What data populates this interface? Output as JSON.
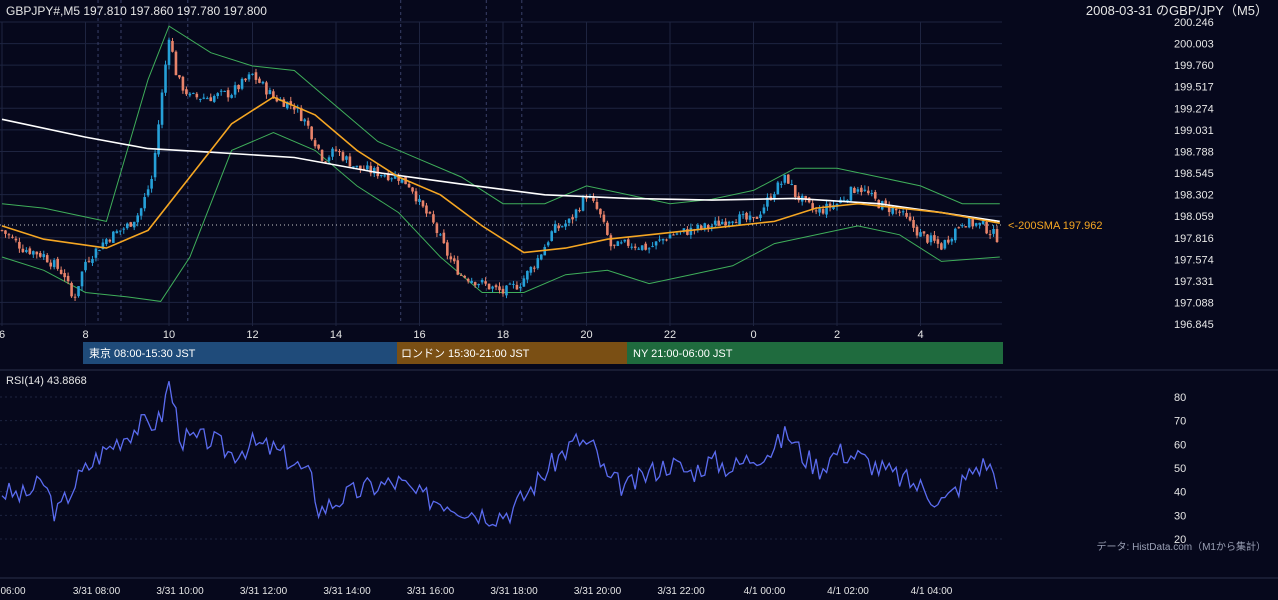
{
  "header": {
    "ohlc_text": "GBPJPY#,M5 197.810 197.860 197.780 197.800",
    "title_text": "2008-03-31 のGBP/JPY（M5）"
  },
  "price_axis": {
    "ticks": [
      "200.246",
      "200.003",
      "199.760",
      "199.517",
      "199.274",
      "199.031",
      "198.788",
      "198.545",
      "198.302",
      "198.059",
      "197.816",
      "197.574",
      "197.331",
      "197.088",
      "196.845"
    ]
  },
  "hour_axis": {
    "ticks": [
      "6",
      "8",
      "10",
      "12",
      "14",
      "16",
      "18",
      "20",
      "22",
      "0",
      "2",
      "4"
    ]
  },
  "sessions": [
    {
      "label": "東京 08:00-15:30 JST",
      "color": "#1f4b7a"
    },
    {
      "label": "ロンドン 15:30-21:00 JST",
      "color": "#7a4f14"
    },
    {
      "label": "NY 21:00-06:00 JST",
      "color": "#1f6b3e"
    }
  ],
  "sma_label": "<-200SMA 197.962",
  "rsi_label": "RSI(14) 43.8868",
  "rsi_axis": {
    "ticks": [
      "80",
      "70",
      "60",
      "50",
      "40",
      "30",
      "20"
    ]
  },
  "source_note": "データ: HistData.com（M1から集計）",
  "time_axis": {
    "ticks": [
      "06:00",
      "3/31 08:00",
      "3/31 10:00",
      "3/31 12:00",
      "3/31 14:00",
      "3/31 16:00",
      "3/31 18:00",
      "3/31 20:00",
      "3/31 22:00",
      "4/1 00:00",
      "4/1 02:00",
      "4/1 04:00"
    ]
  },
  "colors": {
    "background": "#06081c",
    "up": "#26a0d8",
    "down": "#e8836a",
    "sma20": "#f5a623",
    "sma200": "#ffffff",
    "bollinger": "#3fae5a",
    "rsi": "#5b6cf0",
    "grid": "#1e2440"
  },
  "chart_data": {
    "type": "candlestick",
    "symbol": "GBPJPY",
    "timeframe": "M5",
    "ylim": [
      196.845,
      200.246
    ],
    "x_hours": [
      6,
      8,
      10,
      12,
      14,
      16,
      18,
      20,
      22,
      0,
      2,
      4
    ],
    "close_path": [
      [
        6.0,
        197.9
      ],
      [
        6.5,
        197.7
      ],
      [
        7.0,
        197.62
      ],
      [
        7.5,
        197.4
      ],
      [
        7.7,
        197.1
      ],
      [
        8.0,
        197.55
      ],
      [
        8.5,
        197.8
      ],
      [
        9.0,
        197.95
      ],
      [
        9.3,
        198.1
      ],
      [
        9.6,
        198.5
      ],
      [
        9.8,
        199.3
      ],
      [
        10.0,
        200.1
      ],
      [
        10.2,
        199.6
      ],
      [
        10.5,
        199.4
      ],
      [
        11.0,
        199.4
      ],
      [
        11.5,
        199.45
      ],
      [
        12.0,
        199.65
      ],
      [
        12.5,
        199.4
      ],
      [
        13.0,
        199.3
      ],
      [
        13.3,
        199.1
      ],
      [
        13.7,
        198.7
      ],
      [
        14.0,
        198.8
      ],
      [
        14.5,
        198.6
      ],
      [
        15.0,
        198.55
      ],
      [
        15.5,
        198.5
      ],
      [
        15.8,
        198.4
      ],
      [
        16.0,
        198.2
      ],
      [
        16.3,
        198.0
      ],
      [
        16.7,
        197.6
      ],
      [
        17.0,
        197.4
      ],
      [
        17.5,
        197.3
      ],
      [
        18.0,
        197.2
      ],
      [
        18.4,
        197.3
      ],
      [
        18.8,
        197.55
      ],
      [
        19.2,
        197.9
      ],
      [
        19.6,
        198.0
      ],
      [
        20.0,
        198.3
      ],
      [
        20.3,
        198.1
      ],
      [
        20.6,
        197.7
      ],
      [
        21.0,
        197.75
      ],
      [
        21.5,
        197.7
      ],
      [
        22.0,
        197.85
      ],
      [
        22.5,
        197.9
      ],
      [
        23.0,
        197.95
      ],
      [
        23.5,
        198.05
      ],
      [
        24.0,
        198.0
      ],
      [
        24.5,
        198.35
      ],
      [
        24.8,
        198.5
      ],
      [
        25.0,
        198.3
      ],
      [
        25.5,
        198.1
      ],
      [
        26.0,
        198.2
      ],
      [
        26.5,
        198.4
      ],
      [
        27.0,
        198.2
      ],
      [
        27.5,
        198.1
      ],
      [
        28.0,
        197.85
      ],
      [
        28.5,
        197.72
      ],
      [
        29.0,
        198.0
      ],
      [
        29.5,
        197.95
      ],
      [
        29.9,
        197.8
      ]
    ],
    "sma200_path": [
      [
        6.0,
        199.15
      ],
      [
        8.0,
        198.95
      ],
      [
        9.5,
        198.82
      ],
      [
        11.0,
        198.78
      ],
      [
        13.0,
        198.72
      ],
      [
        15.0,
        198.55
      ],
      [
        17.0,
        198.42
      ],
      [
        19.0,
        198.3
      ],
      [
        21.0,
        198.26
      ],
      [
        23.0,
        198.24
      ],
      [
        25.0,
        198.26
      ],
      [
        27.0,
        198.2
      ],
      [
        28.5,
        198.1
      ],
      [
        29.9,
        198.0
      ]
    ],
    "sma20_path": [
      [
        6.0,
        197.95
      ],
      [
        7.0,
        197.8
      ],
      [
        8.5,
        197.7
      ],
      [
        9.5,
        197.9
      ],
      [
        10.5,
        198.5
      ],
      [
        11.5,
        199.1
      ],
      [
        12.5,
        199.4
      ],
      [
        13.5,
        199.2
      ],
      [
        14.5,
        198.8
      ],
      [
        15.5,
        198.5
      ],
      [
        16.5,
        198.3
      ],
      [
        17.5,
        197.95
      ],
      [
        18.5,
        197.65
      ],
      [
        19.5,
        197.7
      ],
      [
        20.5,
        197.8
      ],
      [
        21.5,
        197.85
      ],
      [
        22.5,
        197.9
      ],
      [
        23.5,
        197.95
      ],
      [
        24.5,
        198.0
      ],
      [
        25.5,
        198.15
      ],
      [
        26.5,
        198.2
      ],
      [
        27.5,
        198.15
      ],
      [
        28.5,
        198.1
      ],
      [
        29.9,
        197.98
      ]
    ],
    "bb_upper": [
      [
        6.0,
        198.2
      ],
      [
        7.0,
        198.15
      ],
      [
        8.5,
        198.0
      ],
      [
        9.5,
        199.6
      ],
      [
        10.0,
        200.2
      ],
      [
        11.0,
        199.9
      ],
      [
        12.0,
        199.75
      ],
      [
        13.0,
        199.7
      ],
      [
        14.0,
        199.3
      ],
      [
        15.0,
        198.9
      ],
      [
        16.0,
        198.7
      ],
      [
        17.0,
        198.5
      ],
      [
        18.0,
        198.2
      ],
      [
        19.0,
        198.2
      ],
      [
        20.0,
        198.4
      ],
      [
        21.0,
        198.3
      ],
      [
        22.0,
        198.2
      ],
      [
        23.0,
        198.25
      ],
      [
        24.0,
        198.35
      ],
      [
        25.0,
        198.6
      ],
      [
        26.0,
        198.6
      ],
      [
        27.0,
        198.5
      ],
      [
        28.0,
        198.4
      ],
      [
        29.0,
        198.2
      ],
      [
        29.9,
        198.2
      ]
    ],
    "bb_lower": [
      [
        6.0,
        197.6
      ],
      [
        7.0,
        197.45
      ],
      [
        8.0,
        197.2
      ],
      [
        9.0,
        197.15
      ],
      [
        9.8,
        197.1
      ],
      [
        10.5,
        197.6
      ],
      [
        11.5,
        198.8
      ],
      [
        12.5,
        199.0
      ],
      [
        13.5,
        198.8
      ],
      [
        14.5,
        198.4
      ],
      [
        15.5,
        198.1
      ],
      [
        16.5,
        197.6
      ],
      [
        17.5,
        197.2
      ],
      [
        18.5,
        197.2
      ],
      [
        19.5,
        197.4
      ],
      [
        20.5,
        197.45
      ],
      [
        21.5,
        197.3
      ],
      [
        22.5,
        197.4
      ],
      [
        23.5,
        197.5
      ],
      [
        24.5,
        197.75
      ],
      [
        25.5,
        197.85
      ],
      [
        26.5,
        197.95
      ],
      [
        27.5,
        197.85
      ],
      [
        28.5,
        197.55
      ],
      [
        29.9,
        197.6
      ]
    ],
    "rsi_period": 14,
    "rsi_last": 43.8868,
    "rsi_ylim": [
      20,
      80
    ],
    "rsi_path": [
      [
        6.0,
        40
      ],
      [
        6.5,
        38
      ],
      [
        7.0,
        44
      ],
      [
        7.3,
        30
      ],
      [
        7.8,
        45
      ],
      [
        8.3,
        55
      ],
      [
        8.8,
        62
      ],
      [
        9.3,
        68
      ],
      [
        9.8,
        70
      ],
      [
        10.0,
        86
      ],
      [
        10.3,
        62
      ],
      [
        11.0,
        62
      ],
      [
        11.5,
        56
      ],
      [
        12.0,
        60
      ],
      [
        12.5,
        58
      ],
      [
        13.0,
        52
      ],
      [
        13.4,
        46
      ],
      [
        13.6,
        32
      ],
      [
        14.2,
        38
      ],
      [
        14.8,
        42
      ],
      [
        15.5,
        44
      ],
      [
        16.0,
        38
      ],
      [
        16.6,
        36
      ],
      [
        17.2,
        32
      ],
      [
        17.8,
        30
      ],
      [
        18.2,
        32
      ],
      [
        18.6,
        40
      ],
      [
        19.0,
        48
      ],
      [
        19.4,
        56
      ],
      [
        19.8,
        62
      ],
      [
        20.2,
        58
      ],
      [
        20.5,
        45
      ],
      [
        21.0,
        42
      ],
      [
        21.5,
        48
      ],
      [
        22.0,
        52
      ],
      [
        22.5,
        48
      ],
      [
        23.0,
        53
      ],
      [
        23.5,
        50
      ],
      [
        24.0,
        55
      ],
      [
        24.5,
        58
      ],
      [
        24.8,
        65
      ],
      [
        25.2,
        55
      ],
      [
        25.6,
        50
      ],
      [
        26.0,
        57
      ],
      [
        26.5,
        55
      ],
      [
        27.0,
        50
      ],
      [
        27.5,
        46
      ],
      [
        28.0,
        42
      ],
      [
        28.3,
        38
      ],
      [
        28.6,
        36
      ],
      [
        28.9,
        42
      ],
      [
        29.3,
        50
      ],
      [
        29.6,
        52
      ],
      [
        29.9,
        44
      ]
    ]
  }
}
